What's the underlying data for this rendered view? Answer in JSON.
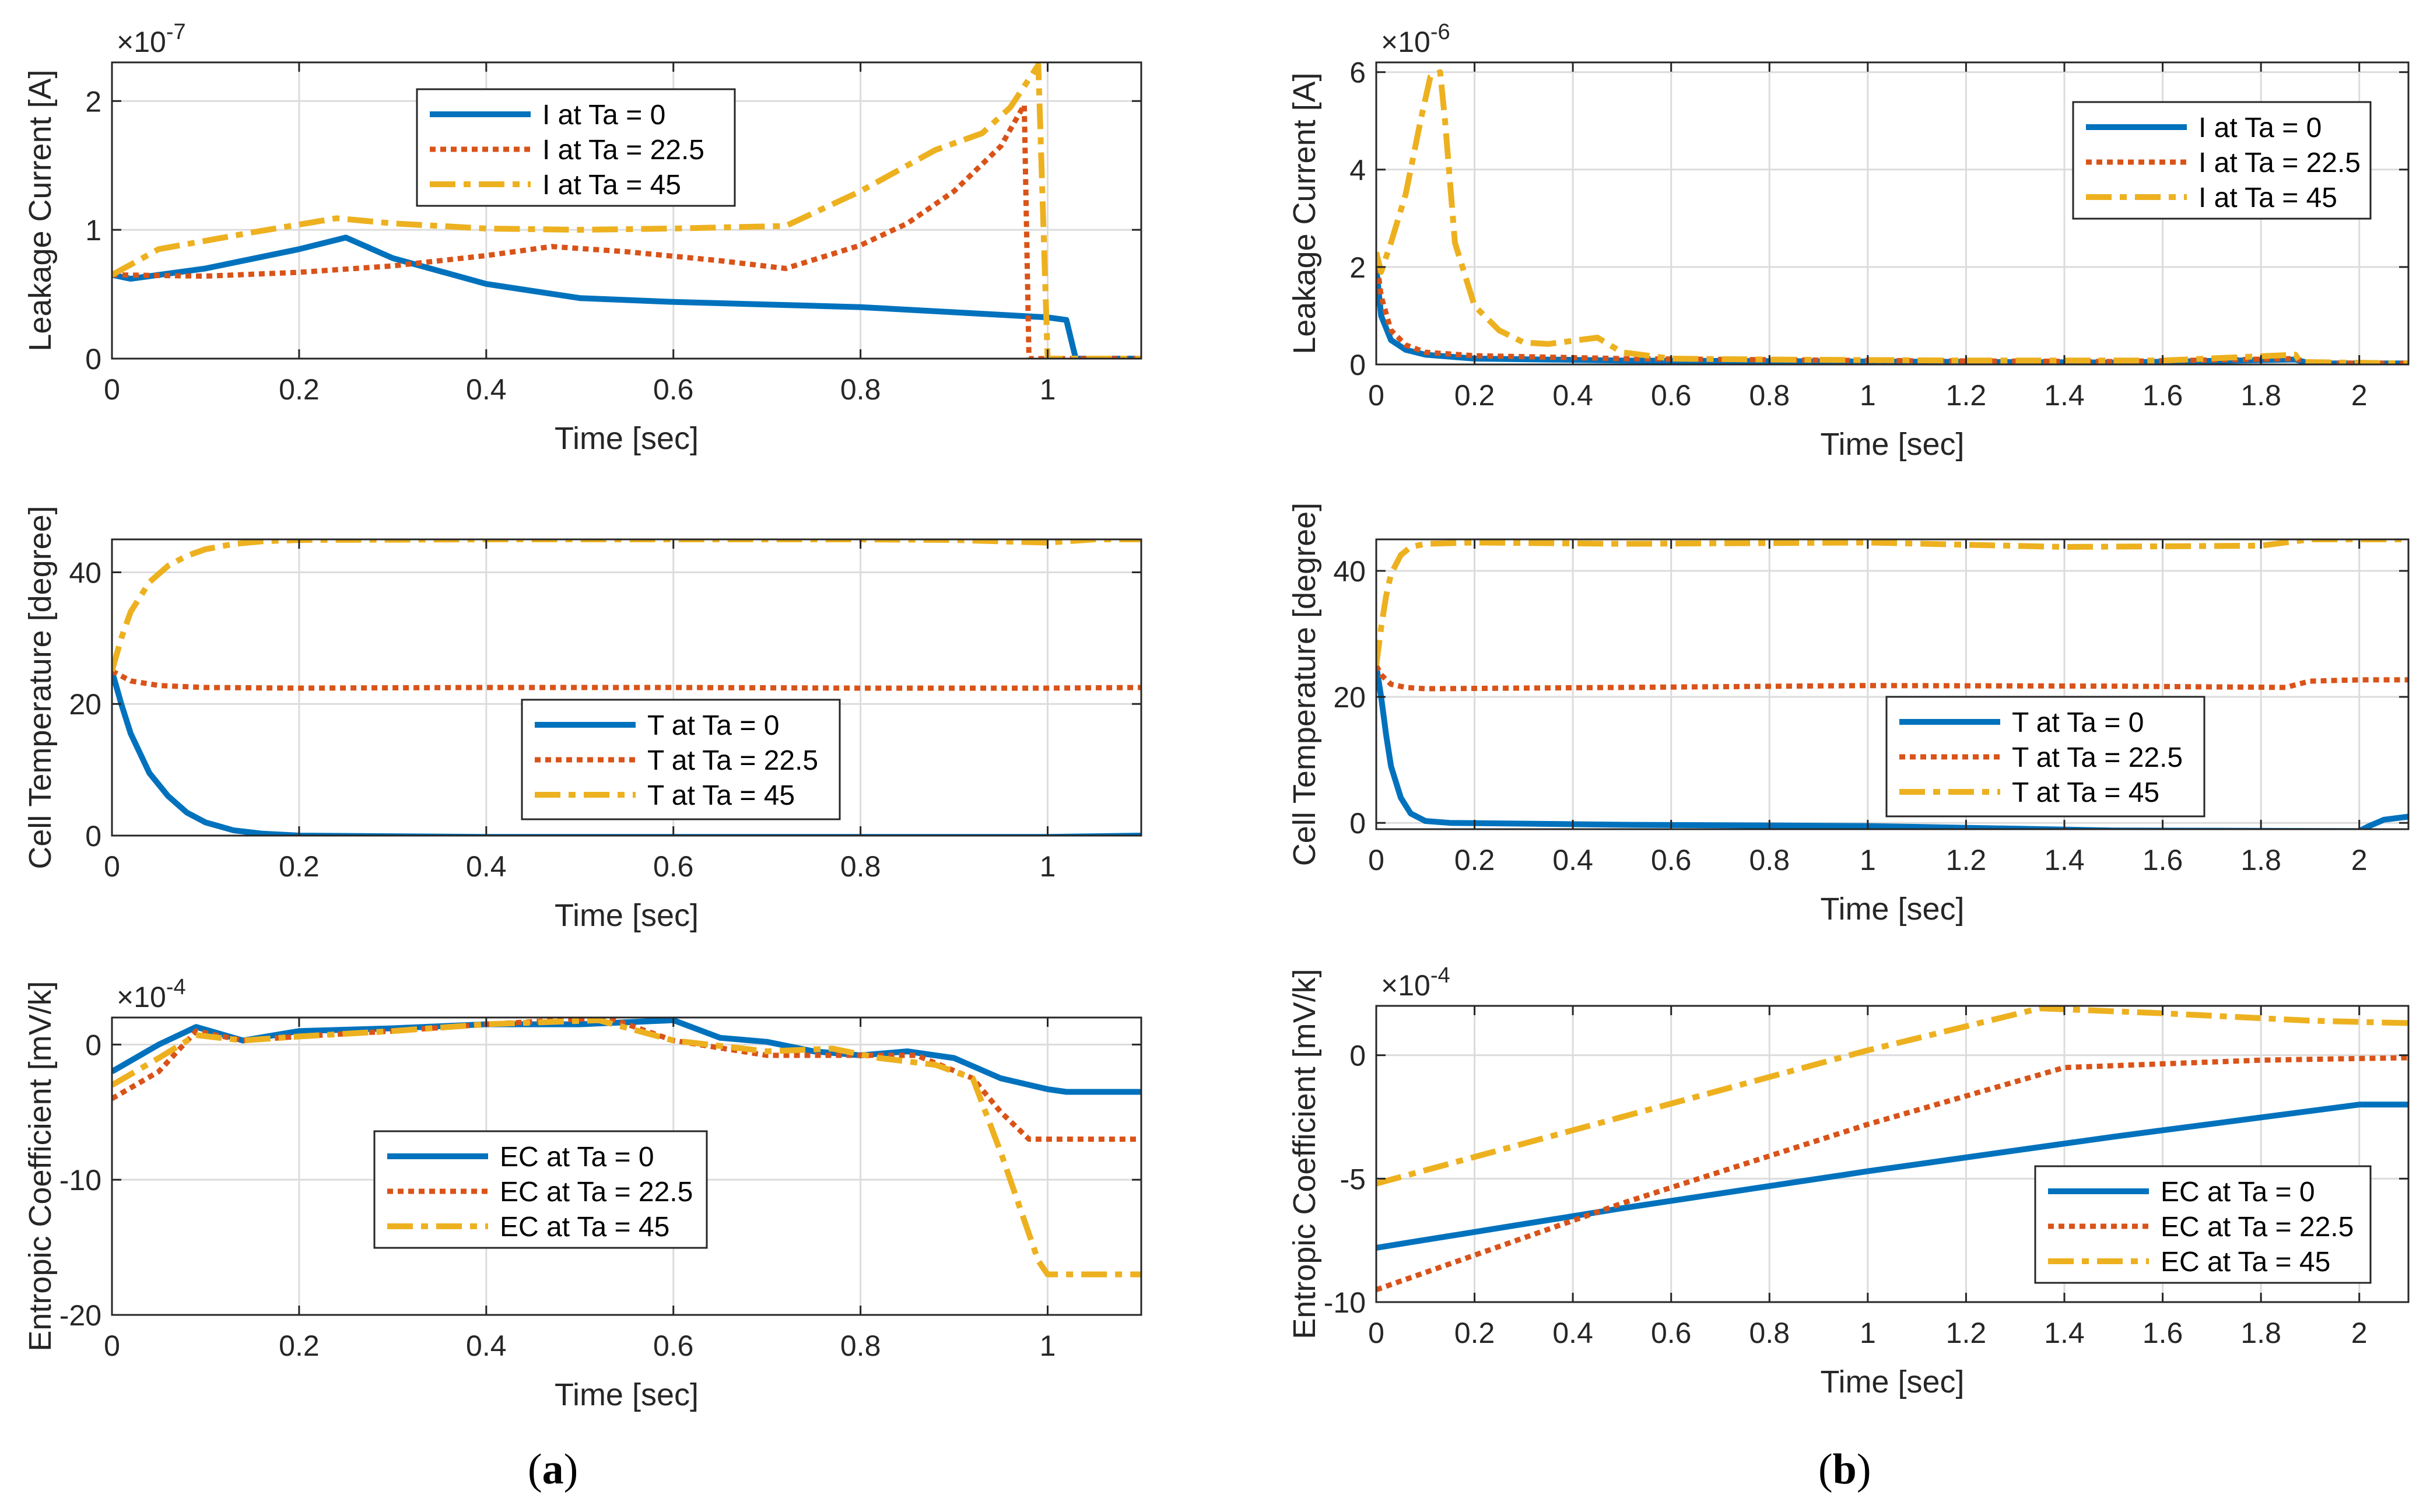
{
  "colors": {
    "blue": "#0072BD",
    "orange": "#D95319",
    "yellow": "#EDB120",
    "grid": "#dcdcdc",
    "axis": "#262626"
  },
  "panels": [
    {
      "id": "a",
      "label_open": "(",
      "label_letter": "a",
      "label_close": ")"
    },
    {
      "id": "b",
      "label_open": "(",
      "label_letter": "b",
      "label_close": ")"
    }
  ],
  "chart_data": [
    {
      "panel": "a",
      "type": "line",
      "xlabel": "Time [sec]",
      "ylabel": "Leakage Current [A]",
      "exponent": "×10",
      "exponent_power": "-7",
      "xlim": [
        0,
        1.1
      ],
      "ylim": [
        0,
        2.3
      ],
      "xticks": [
        0,
        0.2,
        0.4,
        0.6,
        0.8,
        1
      ],
      "xtick_labels": [
        "0",
        "0.2",
        "0.4",
        "0.6",
        "0.8",
        "1"
      ],
      "yticks": [
        0,
        1,
        2
      ],
      "ytick_labels": [
        "0",
        "1",
        "2"
      ],
      "legend_position": "top-center",
      "series": [
        {
          "name": "I at Ta = 0",
          "style": "solid",
          "color": "blue",
          "x": [
            0,
            0.02,
            0.1,
            0.2,
            0.25,
            0.3,
            0.4,
            0.5,
            0.6,
            0.7,
            0.8,
            0.9,
            1.0,
            1.02,
            1.03,
            1.1
          ],
          "y": [
            0.65,
            0.62,
            0.7,
            0.85,
            0.94,
            0.78,
            0.58,
            0.47,
            0.44,
            0.42,
            0.4,
            0.36,
            0.32,
            0.3,
            0,
            0
          ]
        },
        {
          "name": "I at Ta = 22.5",
          "style": "dotted",
          "color": "orange",
          "x": [
            0,
            0.1,
            0.2,
            0.3,
            0.4,
            0.47,
            0.55,
            0.65,
            0.72,
            0.8,
            0.85,
            0.9,
            0.95,
            0.975,
            0.98,
            1.1
          ],
          "y": [
            0.65,
            0.64,
            0.67,
            0.72,
            0.8,
            0.87,
            0.83,
            0.76,
            0.7,
            0.88,
            1.05,
            1.3,
            1.65,
            1.97,
            0,
            0
          ]
        },
        {
          "name": "I at Ta = 45",
          "style": "dashdot",
          "color": "yellow",
          "x": [
            0,
            0.05,
            0.15,
            0.24,
            0.3,
            0.4,
            0.5,
            0.6,
            0.72,
            0.8,
            0.88,
            0.93,
            0.96,
            0.99,
            1.0,
            1.1
          ],
          "y": [
            0.65,
            0.85,
            0.98,
            1.09,
            1.05,
            1.01,
            1.0,
            1.01,
            1.03,
            1.3,
            1.62,
            1.75,
            1.95,
            2.28,
            0,
            0
          ]
        }
      ]
    },
    {
      "panel": "b",
      "type": "line",
      "xlabel": "Time [sec]",
      "ylabel": "Leakage Current [A]",
      "exponent": "×10",
      "exponent_power": "-6",
      "xlim": [
        0,
        2.1
      ],
      "ylim": [
        0,
        6.2
      ],
      "xticks": [
        0,
        0.2,
        0.4,
        0.6,
        0.8,
        1,
        1.2,
        1.4,
        1.6,
        1.8,
        2
      ],
      "xtick_labels": [
        "0",
        "0.2",
        "0.4",
        "0.6",
        "0.8",
        "1",
        "1.2",
        "1.4",
        "1.6",
        "1.8",
        "2"
      ],
      "yticks": [
        0,
        2,
        4,
        6
      ],
      "ytick_labels": [
        "0",
        "2",
        "4",
        "6"
      ],
      "legend_position": "top-right",
      "series": [
        {
          "name": "I at Ta = 0",
          "style": "solid",
          "color": "blue",
          "x": [
            0,
            0.01,
            0.03,
            0.06,
            0.1,
            0.2,
            0.5,
            1.0,
            1.5,
            1.87,
            1.9,
            2.1
          ],
          "y": [
            2.0,
            1.0,
            0.5,
            0.3,
            0.2,
            0.12,
            0.08,
            0.06,
            0.04,
            0.1,
            0.02,
            0.02
          ]
        },
        {
          "name": "I at Ta = 22.5",
          "style": "dotted",
          "color": "orange",
          "x": [
            0,
            0.01,
            0.03,
            0.06,
            0.1,
            0.2,
            0.5,
            1.0,
            1.5,
            1.87,
            1.9,
            2.1
          ],
          "y": [
            2.2,
            1.4,
            0.7,
            0.4,
            0.25,
            0.18,
            0.12,
            0.08,
            0.06,
            0.12,
            0.03,
            0.02
          ]
        },
        {
          "name": "I at Ta = 45",
          "style": "dashdot",
          "color": "yellow",
          "x": [
            0,
            0.01,
            0.03,
            0.06,
            0.09,
            0.11,
            0.13,
            0.14,
            0.16,
            0.2,
            0.25,
            0.3,
            0.35,
            0.45,
            0.5,
            0.6,
            0.8,
            1.2,
            1.6,
            1.87,
            1.88,
            2.1
          ],
          "y": [
            2.3,
            1.9,
            2.5,
            3.5,
            5.0,
            5.9,
            6.0,
            5.0,
            2.5,
            1.2,
            0.7,
            0.45,
            0.42,
            0.55,
            0.25,
            0.12,
            0.1,
            0.08,
            0.08,
            0.2,
            0.05,
            0.02
          ]
        }
      ]
    },
    {
      "panel": "a",
      "type": "line",
      "xlabel": "Time [sec]",
      "ylabel": "Cell Temperature [degree]",
      "xlim": [
        0,
        1.1
      ],
      "ylim": [
        0,
        45
      ],
      "xticks": [
        0,
        0.2,
        0.4,
        0.6,
        0.8,
        1
      ],
      "xtick_labels": [
        "0",
        "0.2",
        "0.4",
        "0.6",
        "0.8",
        "1"
      ],
      "yticks": [
        0,
        20,
        40
      ],
      "ytick_labels": [
        "0",
        "20",
        "40"
      ],
      "legend_position": "bottom-center",
      "series": [
        {
          "name": "T at Ta = 0",
          "style": "solid",
          "color": "blue",
          "x": [
            0,
            0.01,
            0.02,
            0.04,
            0.06,
            0.08,
            0.1,
            0.13,
            0.16,
            0.2,
            0.4,
            0.6,
            0.8,
            1.0,
            1.1
          ],
          "y": [
            25,
            20,
            15.5,
            9.5,
            6,
            3.5,
            2,
            0.8,
            0.3,
            0,
            -0.2,
            -0.2,
            -0.2,
            -0.2,
            0
          ]
        },
        {
          "name": "T at Ta = 22.5",
          "style": "dotted",
          "color": "orange",
          "x": [
            0,
            0.02,
            0.05,
            0.1,
            0.2,
            0.4,
            0.6,
            0.8,
            1.0,
            1.1
          ],
          "y": [
            25,
            23.5,
            22.8,
            22.5,
            22.4,
            22.5,
            22.5,
            22.4,
            22.4,
            22.5
          ]
        },
        {
          "name": "T at Ta = 45",
          "style": "dashdot",
          "color": "yellow",
          "x": [
            0,
            0.01,
            0.02,
            0.04,
            0.06,
            0.08,
            0.1,
            0.13,
            0.16,
            0.2,
            0.4,
            0.6,
            0.8,
            0.9,
            1.0,
            1.05,
            1.1
          ],
          "y": [
            25,
            30,
            34,
            38.5,
            41,
            42.5,
            43.5,
            44.3,
            44.7,
            44.9,
            45,
            45,
            45,
            44.9,
            44.5,
            45,
            45
          ]
        }
      ]
    },
    {
      "panel": "b",
      "type": "line",
      "xlabel": "Time [sec]",
      "ylabel": "Cell Temperature [degree]",
      "xlim": [
        0,
        2.1
      ],
      "ylim": [
        -1,
        45
      ],
      "xticks": [
        0,
        0.2,
        0.4,
        0.6,
        0.8,
        1,
        1.2,
        1.4,
        1.6,
        1.8,
        2
      ],
      "xtick_labels": [
        "0",
        "0.2",
        "0.4",
        "0.6",
        "0.8",
        "1",
        "1.2",
        "1.4",
        "1.6",
        "1.8",
        "2"
      ],
      "yticks": [
        0,
        20,
        40
      ],
      "ytick_labels": [
        "0",
        "20",
        "40"
      ],
      "legend_position": "bottom-center",
      "series": [
        {
          "name": "T at Ta = 0",
          "style": "solid",
          "color": "blue",
          "x": [
            0,
            0.01,
            0.02,
            0.03,
            0.05,
            0.07,
            0.1,
            0.15,
            0.5,
            1.0,
            1.5,
            2.0,
            2.02,
            2.05,
            2.1
          ],
          "y": [
            25,
            20,
            14,
            9,
            4,
            1.5,
            0.3,
            0,
            -0.3,
            -0.5,
            -1.2,
            -1.3,
            -0.5,
            0.5,
            1
          ]
        },
        {
          "name": "T at Ta = 22.5",
          "style": "dotted",
          "color": "orange",
          "x": [
            0,
            0.01,
            0.03,
            0.06,
            0.1,
            0.5,
            1.0,
            1.5,
            1.85,
            1.9,
            2.0,
            2.1
          ],
          "y": [
            25,
            23.5,
            22,
            21.5,
            21.3,
            21.5,
            21.8,
            21.7,
            21.5,
            22.5,
            22.7,
            22.7
          ]
        },
        {
          "name": "T at Ta = 45",
          "style": "dashdot",
          "color": "yellow",
          "x": [
            0,
            0.01,
            0.02,
            0.03,
            0.05,
            0.07,
            0.1,
            0.2,
            0.5,
            1.0,
            1.4,
            1.8,
            1.9,
            2.1
          ],
          "y": [
            25,
            31,
            36,
            39.5,
            42.5,
            43.8,
            44.3,
            44.5,
            44.3,
            44.5,
            43.8,
            44,
            45,
            45
          ]
        }
      ]
    },
    {
      "panel": "a",
      "type": "line",
      "xlabel": "Time [sec]",
      "ylabel": "Entropic Coefficient [mV/k]",
      "exponent": "×10",
      "exponent_power": "-4",
      "xlim": [
        0,
        1.1
      ],
      "ylim": [
        -20,
        2
      ],
      "xticks": [
        0,
        0.2,
        0.4,
        0.6,
        0.8,
        1
      ],
      "xtick_labels": [
        "0",
        "0.2",
        "0.4",
        "0.6",
        "0.8",
        "1"
      ],
      "yticks": [
        -20,
        -10,
        0
      ],
      "ytick_labels": [
        "-20",
        "-10",
        "0"
      ],
      "legend_position": "bottom-center",
      "series": [
        {
          "name": "EC at Ta = 0",
          "style": "solid",
          "color": "blue",
          "x": [
            0,
            0.05,
            0.09,
            0.14,
            0.2,
            0.3,
            0.4,
            0.5,
            0.6,
            0.65,
            0.7,
            0.75,
            0.8,
            0.85,
            0.9,
            0.95,
            1.0,
            1.02,
            1.1
          ],
          "y": [
            -2,
            0,
            1.3,
            0.3,
            1.0,
            1.2,
            1.5,
            1.5,
            1.8,
            0.5,
            0.2,
            -0.5,
            -0.8,
            -0.5,
            -1,
            -2.5,
            -3.3,
            -3.5,
            -3.5
          ]
        },
        {
          "name": "EC at Ta = 22.5",
          "style": "dotted",
          "color": "orange",
          "x": [
            0,
            0.05,
            0.09,
            0.14,
            0.2,
            0.3,
            0.4,
            0.53,
            0.6,
            0.7,
            0.8,
            0.86,
            0.92,
            0.95,
            0.98,
            1.1
          ],
          "y": [
            -4,
            -2,
            1.0,
            0.3,
            0.6,
            1.0,
            1.5,
            2.0,
            0.3,
            -0.8,
            -0.8,
            -0.8,
            -2.5,
            -5,
            -7,
            -7
          ]
        },
        {
          "name": "EC at Ta = 45",
          "style": "dashdot",
          "color": "yellow",
          "x": [
            0,
            0.05,
            0.09,
            0.14,
            0.2,
            0.3,
            0.4,
            0.52,
            0.6,
            0.7,
            0.77,
            0.82,
            0.88,
            0.92,
            0.95,
            0.99,
            1.0,
            1.1
          ],
          "y": [
            -3,
            -1,
            0.7,
            0.3,
            0.6,
            1.0,
            1.5,
            1.8,
            0.3,
            -0.5,
            -0.3,
            -1,
            -1.5,
            -2.5,
            -8,
            -16,
            -17,
            -17
          ]
        }
      ]
    },
    {
      "panel": "b",
      "type": "line",
      "xlabel": "Time [sec]",
      "ylabel": "Entropic Coefficient [mV/k]",
      "exponent": "×10",
      "exponent_power": "-4",
      "xlim": [
        0,
        2.1
      ],
      "ylim": [
        -10,
        2
      ],
      "xticks": [
        0,
        0.2,
        0.4,
        0.6,
        0.8,
        1,
        1.2,
        1.4,
        1.6,
        1.8,
        2
      ],
      "xtick_labels": [
        "0",
        "0.2",
        "0.4",
        "0.6",
        "0.8",
        "1",
        "1.2",
        "1.4",
        "1.6",
        "1.8",
        "2"
      ],
      "yticks": [
        -10,
        -5,
        0
      ],
      "ytick_labels": [
        "-10",
        "-5",
        "0"
      ],
      "legend_position": "bottom-right",
      "series": [
        {
          "name": "EC at Ta = 0",
          "style": "solid",
          "color": "blue",
          "x": [
            0,
            0.5,
            1.0,
            1.5,
            2.0,
            2.1
          ],
          "y": [
            -7.8,
            -6.2,
            -4.7,
            -3.3,
            -2.0,
            -2.0
          ]
        },
        {
          "name": "EC at Ta = 22.5",
          "style": "dotted",
          "color": "orange",
          "x": [
            0,
            0.5,
            1.0,
            1.4,
            1.8,
            2.1
          ],
          "y": [
            -9.5,
            -6.0,
            -2.8,
            -0.5,
            -0.2,
            -0.1
          ]
        },
        {
          "name": "EC at Ta = 45",
          "style": "dashdot",
          "color": "yellow",
          "x": [
            0,
            0.5,
            1.0,
            1.35,
            1.6,
            1.9,
            2.1
          ],
          "y": [
            -5.2,
            -2.5,
            0.2,
            1.9,
            1.7,
            1.4,
            1.3
          ]
        }
      ]
    }
  ]
}
